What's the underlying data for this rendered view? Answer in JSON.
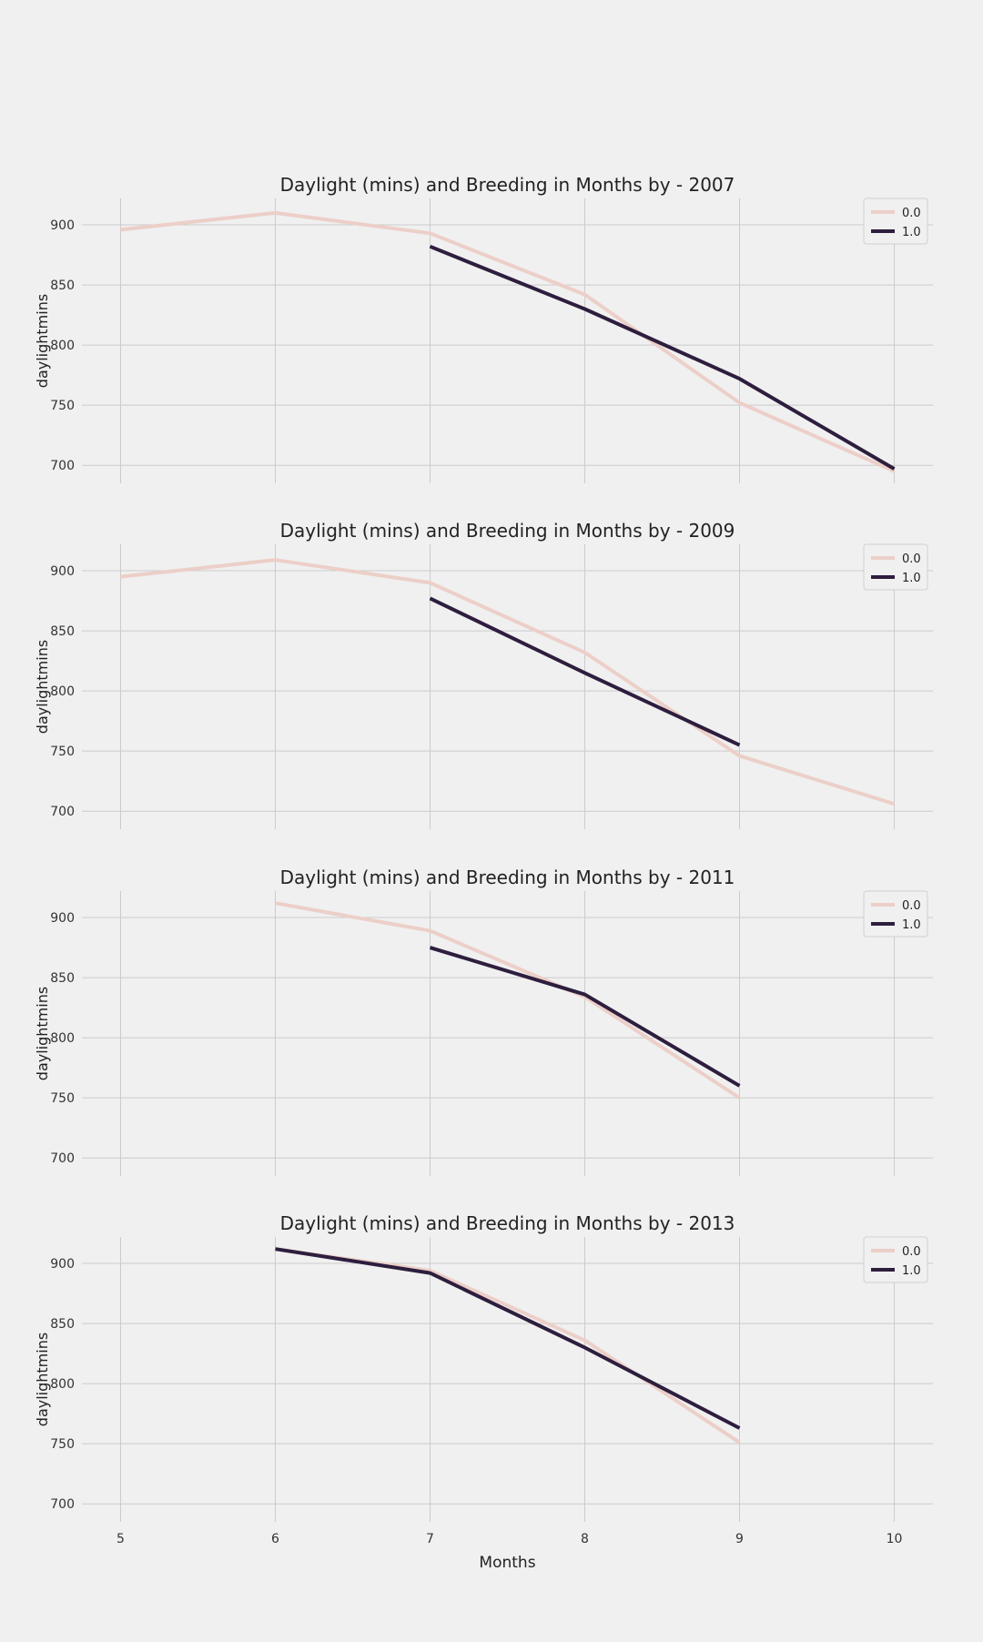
{
  "chart_data": [
    {
      "type": "line",
      "title": "Daylight (mins) and Breeding in Months by - 2007",
      "xlabel": "",
      "ylabel": "daylightmins",
      "xlim": [
        4.75,
        10.25
      ],
      "ylim": [
        685,
        922
      ],
      "yticks": [
        700,
        750,
        800,
        850,
        900
      ],
      "xticks": [
        5,
        6,
        7,
        8,
        9,
        10
      ],
      "show_xtick_labels": false,
      "grid": true,
      "legend_position": "top-right",
      "series": [
        {
          "name": "0.0",
          "color": "#eccfc8",
          "x": [
            5,
            6,
            7,
            8,
            9,
            10
          ],
          "y": [
            896,
            910,
            893,
            842,
            752,
            695
          ]
        },
        {
          "name": "1.0",
          "color": "#2d1e3e",
          "x": [
            7,
            8,
            9,
            10
          ],
          "y": [
            882,
            830,
            772,
            697
          ]
        }
      ]
    },
    {
      "type": "line",
      "title": "Daylight (mins) and Breeding in Months by - 2009",
      "xlabel": "",
      "ylabel": "daylightmins",
      "xlim": [
        4.75,
        10.25
      ],
      "ylim": [
        685,
        922
      ],
      "yticks": [
        700,
        750,
        800,
        850,
        900
      ],
      "xticks": [
        5,
        6,
        7,
        8,
        9,
        10
      ],
      "show_xtick_labels": false,
      "grid": true,
      "legend_position": "top-right",
      "series": [
        {
          "name": "0.0",
          "color": "#eccfc8",
          "x": [
            5,
            6,
            7,
            8,
            9,
            10
          ],
          "y": [
            895,
            909,
            890,
            832,
            746,
            706
          ]
        },
        {
          "name": "1.0",
          "color": "#2d1e3e",
          "x": [
            7,
            8,
            9
          ],
          "y": [
            877,
            815,
            755
          ]
        }
      ]
    },
    {
      "type": "line",
      "title": "Daylight (mins) and Breeding in Months by - 2011",
      "xlabel": "",
      "ylabel": "daylightmins",
      "xlim": [
        4.75,
        10.25
      ],
      "ylim": [
        685,
        922
      ],
      "yticks": [
        700,
        750,
        800,
        850,
        900
      ],
      "xticks": [
        5,
        6,
        7,
        8,
        9,
        10
      ],
      "show_xtick_labels": false,
      "grid": true,
      "legend_position": "top-right",
      "series": [
        {
          "name": "0.0",
          "color": "#eccfc8",
          "x": [
            6,
            7,
            8,
            9
          ],
          "y": [
            912,
            889,
            834,
            750
          ]
        },
        {
          "name": "1.0",
          "color": "#2d1e3e",
          "x": [
            7,
            8,
            9
          ],
          "y": [
            875,
            836,
            760
          ]
        }
      ]
    },
    {
      "type": "line",
      "title": "Daylight (mins) and Breeding in Months by - 2013",
      "xlabel": "Months",
      "ylabel": "daylightmins",
      "xlim": [
        4.75,
        10.25
      ],
      "ylim": [
        685,
        922
      ],
      "yticks": [
        700,
        750,
        800,
        850,
        900
      ],
      "xticks": [
        5,
        6,
        7,
        8,
        9,
        10
      ],
      "show_xtick_labels": true,
      "grid": true,
      "legend_position": "top-right",
      "series": [
        {
          "name": "0.0",
          "color": "#eccfc8",
          "x": [
            6,
            7,
            8,
            9
          ],
          "y": [
            912,
            894,
            836,
            751
          ]
        },
        {
          "name": "1.0",
          "color": "#2d1e3e",
          "x": [
            6,
            7,
            8,
            9
          ],
          "y": [
            912,
            892,
            830,
            763
          ]
        }
      ]
    }
  ]
}
